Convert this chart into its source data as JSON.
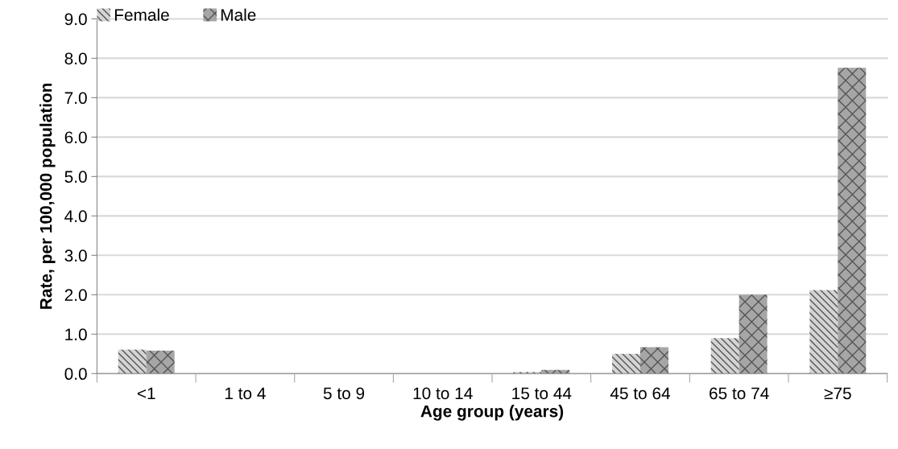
{
  "chart_data": {
    "type": "bar",
    "xlabel": "Age group (years)",
    "ylabel": "Rate, per 100,000 population",
    "categories": [
      "<1",
      "1 to 4",
      "5 to 9",
      "10 to 14",
      "15 to 44",
      "45 to 64",
      "65 to 74",
      "≥75"
    ],
    "series": [
      {
        "name": "Female",
        "color": "#d4d4d4",
        "values": [
          0.61,
          0,
          0,
          0,
          0.04,
          0.5,
          0.9,
          2.12
        ]
      },
      {
        "name": "Male",
        "color": "#a6a6a6",
        "values": [
          0.58,
          0,
          0,
          0,
          0.09,
          0.67,
          2.0,
          7.76
        ]
      }
    ],
    "ylim": [
      0,
      9
    ],
    "yticks": [
      {
        "value": 0,
        "label": "0.0"
      },
      {
        "value": 1,
        "label": "1.0"
      },
      {
        "value": 2,
        "label": "2.0"
      },
      {
        "value": 3,
        "label": "3.0"
      },
      {
        "value": 4,
        "label": "4.0"
      },
      {
        "value": 5,
        "label": "5.0"
      },
      {
        "value": 6,
        "label": "6.0"
      },
      {
        "value": 7,
        "label": "7.0"
      },
      {
        "value": 8,
        "label": "8.0"
      },
      {
        "value": 9,
        "label": "9.0"
      }
    ],
    "grid": "y",
    "legend": "top left"
  }
}
